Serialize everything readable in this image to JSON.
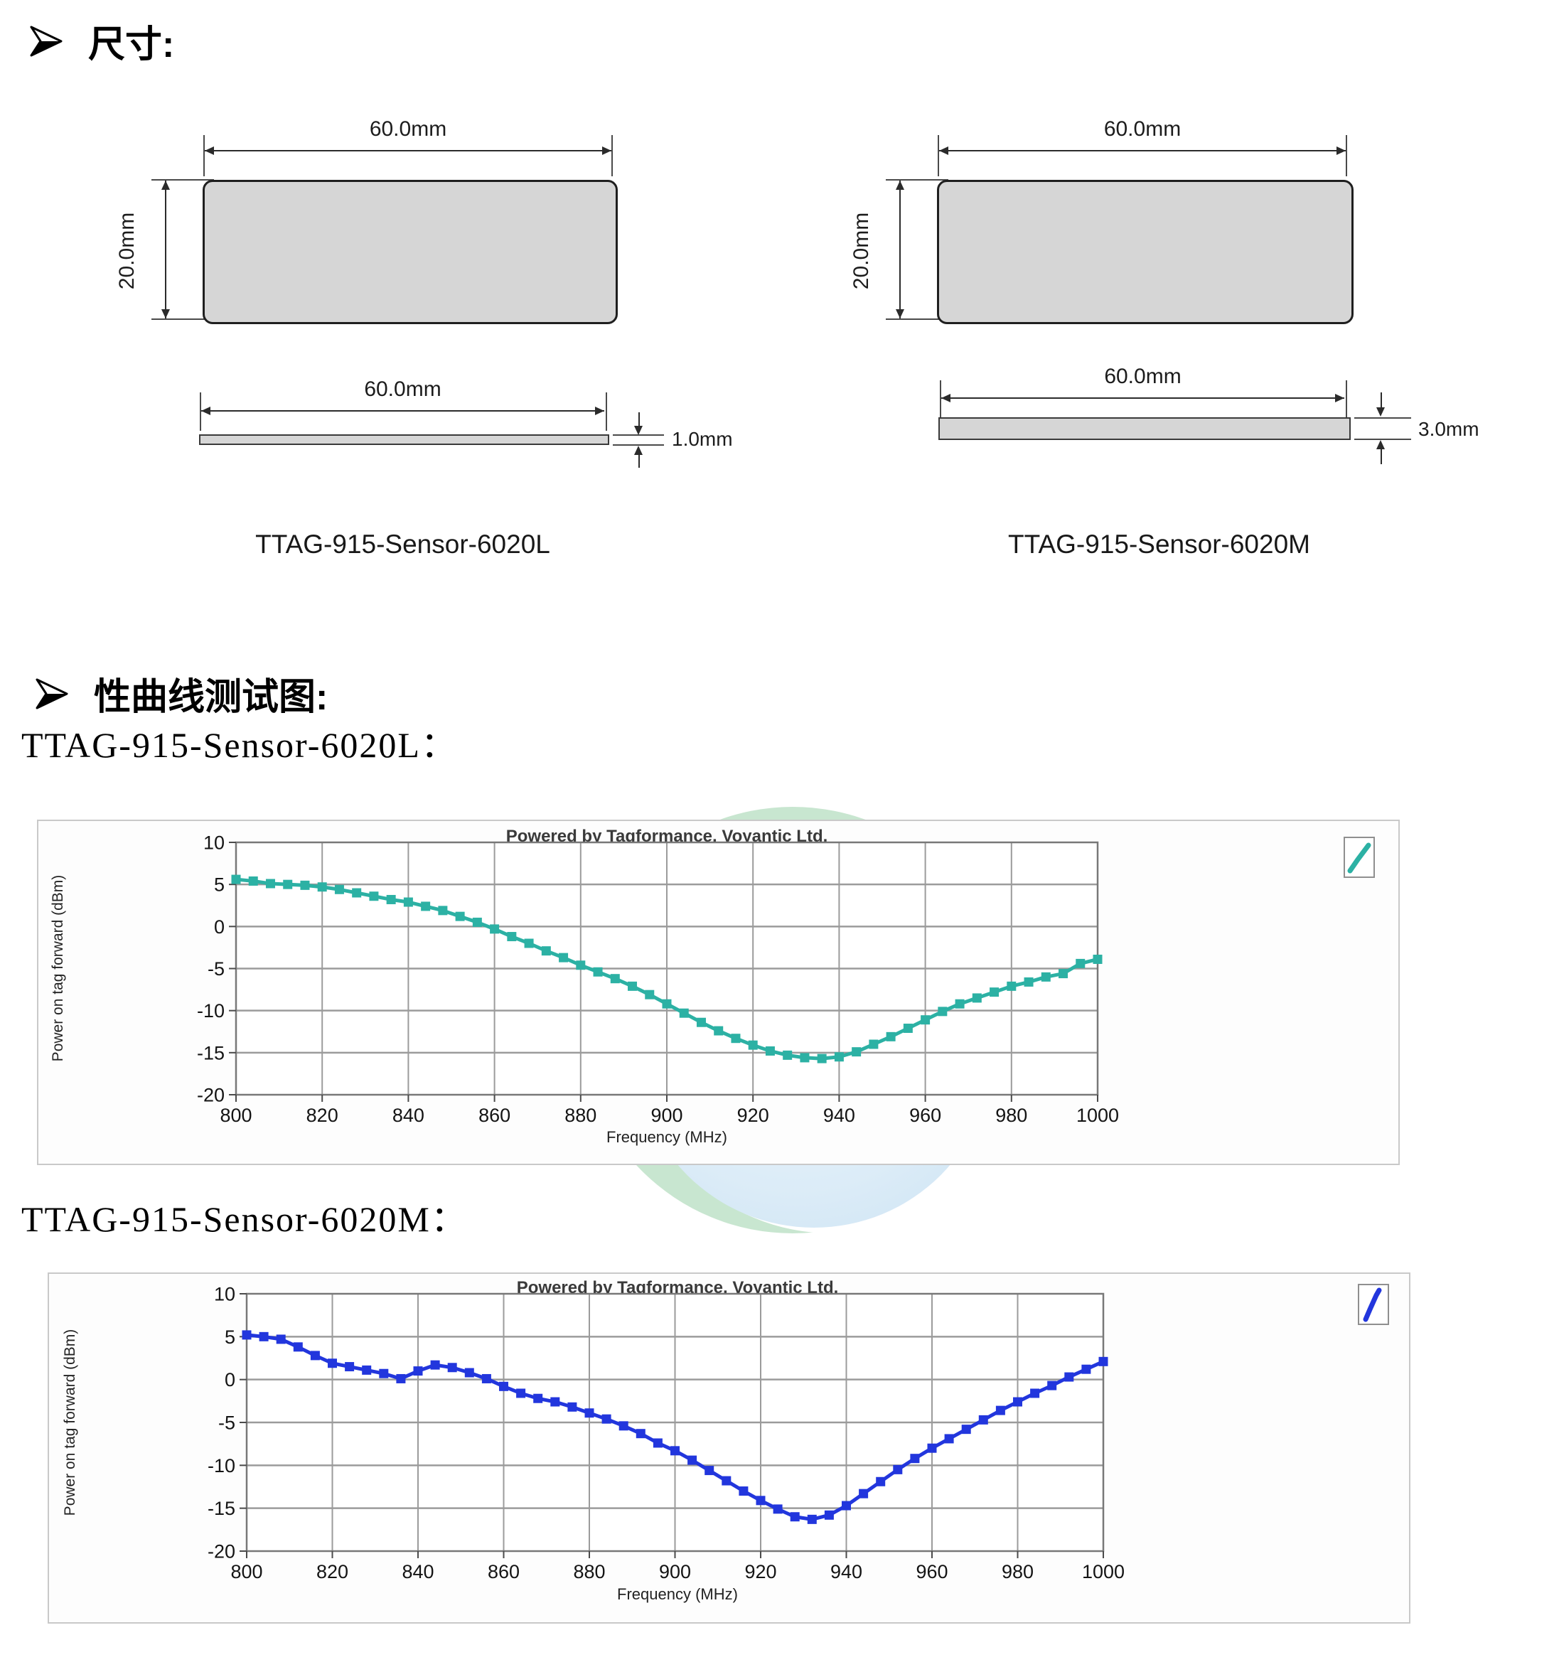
{
  "page": {
    "section1_title": "尺寸:",
    "section2_title": "性曲线测试图:",
    "chart1_heading": "TTAG-915-Sensor-6020L：",
    "chart2_heading": "TTAG-915-Sensor-6020M："
  },
  "colors": {
    "series1": "#2cb1a4",
    "series2": "#2236dd",
    "grid": "#9b9b9b",
    "plot_border": "#787878",
    "tag_fill": "#d6d6d6",
    "watermark_green": "#bfe2c8",
    "watermark_blue": "#cbe3f4"
  },
  "diagrams": [
    {
      "caption": "TTAG-915-Sensor-6020L",
      "width_label": "60.0mm",
      "height_label": "20.0mm",
      "side_width_label": "60.0mm",
      "thickness_label": "1.0mm"
    },
    {
      "caption": "TTAG-915-Sensor-6020M",
      "width_label": "60.0mm",
      "height_label": "20.0mm",
      "side_width_label": "60.0mm",
      "thickness_label": "3.0mm"
    }
  ],
  "chart_data": [
    {
      "type": "line",
      "title": "Powered by Tagformance, Voyantic Ltd.",
      "xlabel": "Frequency (MHz)",
      "ylabel": "Power on tag forward (dBm)",
      "xlim": [
        800,
        1000
      ],
      "ylim": [
        -20,
        10
      ],
      "xticks": [
        800,
        820,
        840,
        860,
        880,
        900,
        920,
        940,
        960,
        980,
        1000
      ],
      "yticks": [
        10,
        5,
        0,
        -5,
        -10,
        -15,
        -20
      ],
      "grid": true,
      "legend_position": "top-right-outside",
      "series": [
        {
          "name": "TTAG-915-Sensor-6020L",
          "color": "#2cb1a4",
          "marker": "square",
          "x": [
            800,
            804,
            808,
            812,
            816,
            820,
            824,
            828,
            832,
            836,
            840,
            844,
            848,
            852,
            856,
            860,
            864,
            868,
            872,
            876,
            880,
            884,
            888,
            892,
            896,
            900,
            904,
            908,
            912,
            916,
            920,
            924,
            928,
            932,
            936,
            940,
            944,
            948,
            952,
            956,
            960,
            964,
            968,
            972,
            976,
            980,
            984,
            988,
            992,
            996,
            1000
          ],
          "y": [
            5.6,
            5.4,
            5.1,
            5.0,
            4.9,
            4.7,
            4.4,
            4.0,
            3.6,
            3.2,
            2.9,
            2.4,
            1.9,
            1.2,
            0.5,
            -0.3,
            -1.2,
            -2.0,
            -2.9,
            -3.7,
            -4.6,
            -5.4,
            -6.2,
            -7.1,
            -8.1,
            -9.2,
            -10.3,
            -11.4,
            -12.4,
            -13.3,
            -14.1,
            -14.8,
            -15.3,
            -15.6,
            -15.7,
            -15.5,
            -14.9,
            -14.0,
            -13.1,
            -12.1,
            -11.1,
            -10.1,
            -9.2,
            -8.5,
            -7.8,
            -7.1,
            -6.6,
            -6.0,
            -5.6,
            -4.4,
            -3.9
          ]
        }
      ]
    },
    {
      "type": "line",
      "title": "Powered by Tagformance, Voyantic Ltd.",
      "xlabel": "Frequency (MHz)",
      "ylabel": "Power on tag forward (dBm)",
      "xlim": [
        800,
        1000
      ],
      "ylim": [
        -20,
        10
      ],
      "xticks": [
        800,
        820,
        840,
        860,
        880,
        900,
        920,
        940,
        960,
        980,
        1000
      ],
      "yticks": [
        10,
        5,
        0,
        -5,
        -10,
        -15,
        -20
      ],
      "grid": true,
      "legend_position": "top-right-outside",
      "series": [
        {
          "name": "TTAG-915-Sensor-6020M",
          "color": "#2236dd",
          "marker": "square",
          "x": [
            800,
            804,
            808,
            812,
            816,
            820,
            824,
            828,
            832,
            836,
            840,
            844,
            848,
            852,
            856,
            860,
            864,
            868,
            872,
            876,
            880,
            884,
            888,
            892,
            896,
            900,
            904,
            908,
            912,
            916,
            920,
            924,
            928,
            932,
            936,
            940,
            944,
            948,
            952,
            956,
            960,
            964,
            968,
            972,
            976,
            980,
            984,
            988,
            992,
            996,
            1000
          ],
          "y": [
            5.2,
            5.0,
            4.7,
            3.8,
            2.8,
            1.9,
            1.5,
            1.1,
            0.7,
            0.1,
            1.0,
            1.7,
            1.4,
            0.8,
            0.1,
            -0.8,
            -1.6,
            -2.2,
            -2.6,
            -3.2,
            -3.9,
            -4.6,
            -5.4,
            -6.3,
            -7.4,
            -8.3,
            -9.4,
            -10.6,
            -11.8,
            -13.0,
            -14.1,
            -15.1,
            -16.0,
            -16.3,
            -15.8,
            -14.7,
            -13.3,
            -11.9,
            -10.5,
            -9.2,
            -8.0,
            -6.9,
            -5.8,
            -4.7,
            -3.6,
            -2.6,
            -1.6,
            -0.7,
            0.3,
            1.2,
            2.1
          ]
        }
      ]
    }
  ]
}
